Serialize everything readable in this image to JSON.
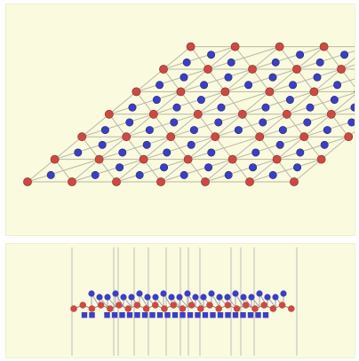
{
  "colors": {
    "background": "#fafade",
    "atom_red": "#cc4a42",
    "atom_blue": "#3c3fc4",
    "bond": "#b8b8a8",
    "guide_line": "#c8c8c0"
  },
  "top_view": {
    "description_key": "lattice-top-view",
    "grid": {
      "cols": 6,
      "rows": 6
    }
  },
  "side_view": {
    "description_key": "lattice-side-view"
  }
}
